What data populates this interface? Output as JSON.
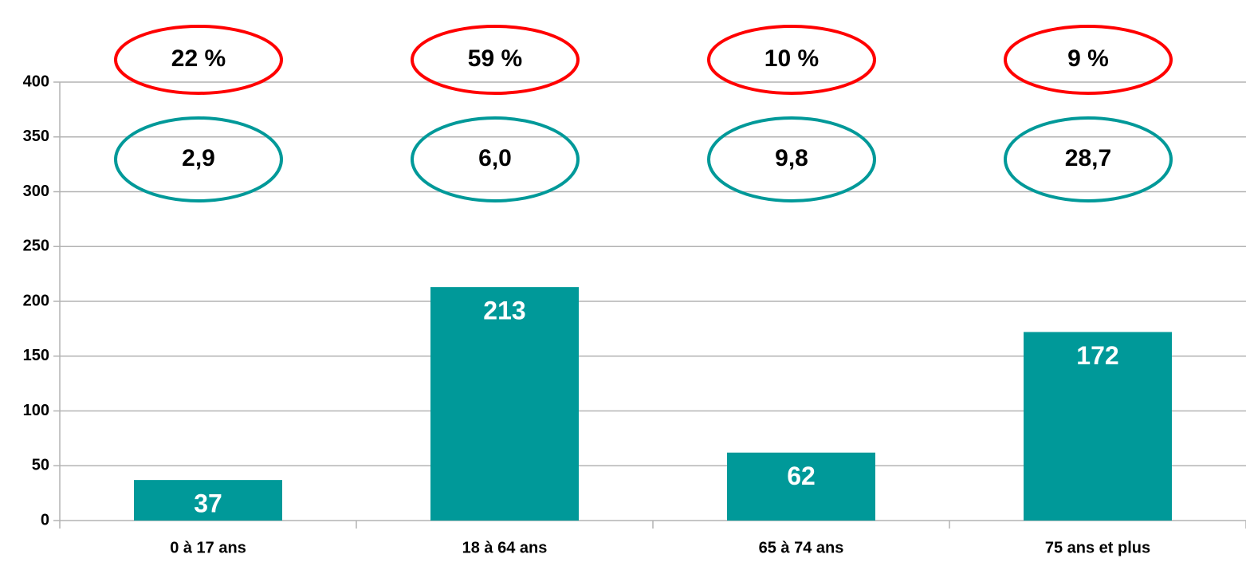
{
  "chart_data": {
    "type": "bar",
    "categories": [
      "0 à 17 ans",
      "18 à 64 ans",
      "65 à 74 ans",
      "75 ans et plus"
    ],
    "values": [
      37,
      213,
      62,
      172
    ],
    "color": "#009999",
    "ylim": [
      0,
      400
    ],
    "yticks": [
      0,
      50,
      100,
      150,
      200,
      250,
      300,
      350,
      400
    ],
    "grid": true,
    "annotations": {
      "shares": {
        "color": "#ff0000",
        "labels": [
          "22 %",
          "59 %",
          "10 %",
          "9 %"
        ]
      },
      "rates": {
        "color": "#009999",
        "labels": [
          "2,9",
          "6,0",
          "9,8",
          "28,7"
        ]
      }
    }
  }
}
